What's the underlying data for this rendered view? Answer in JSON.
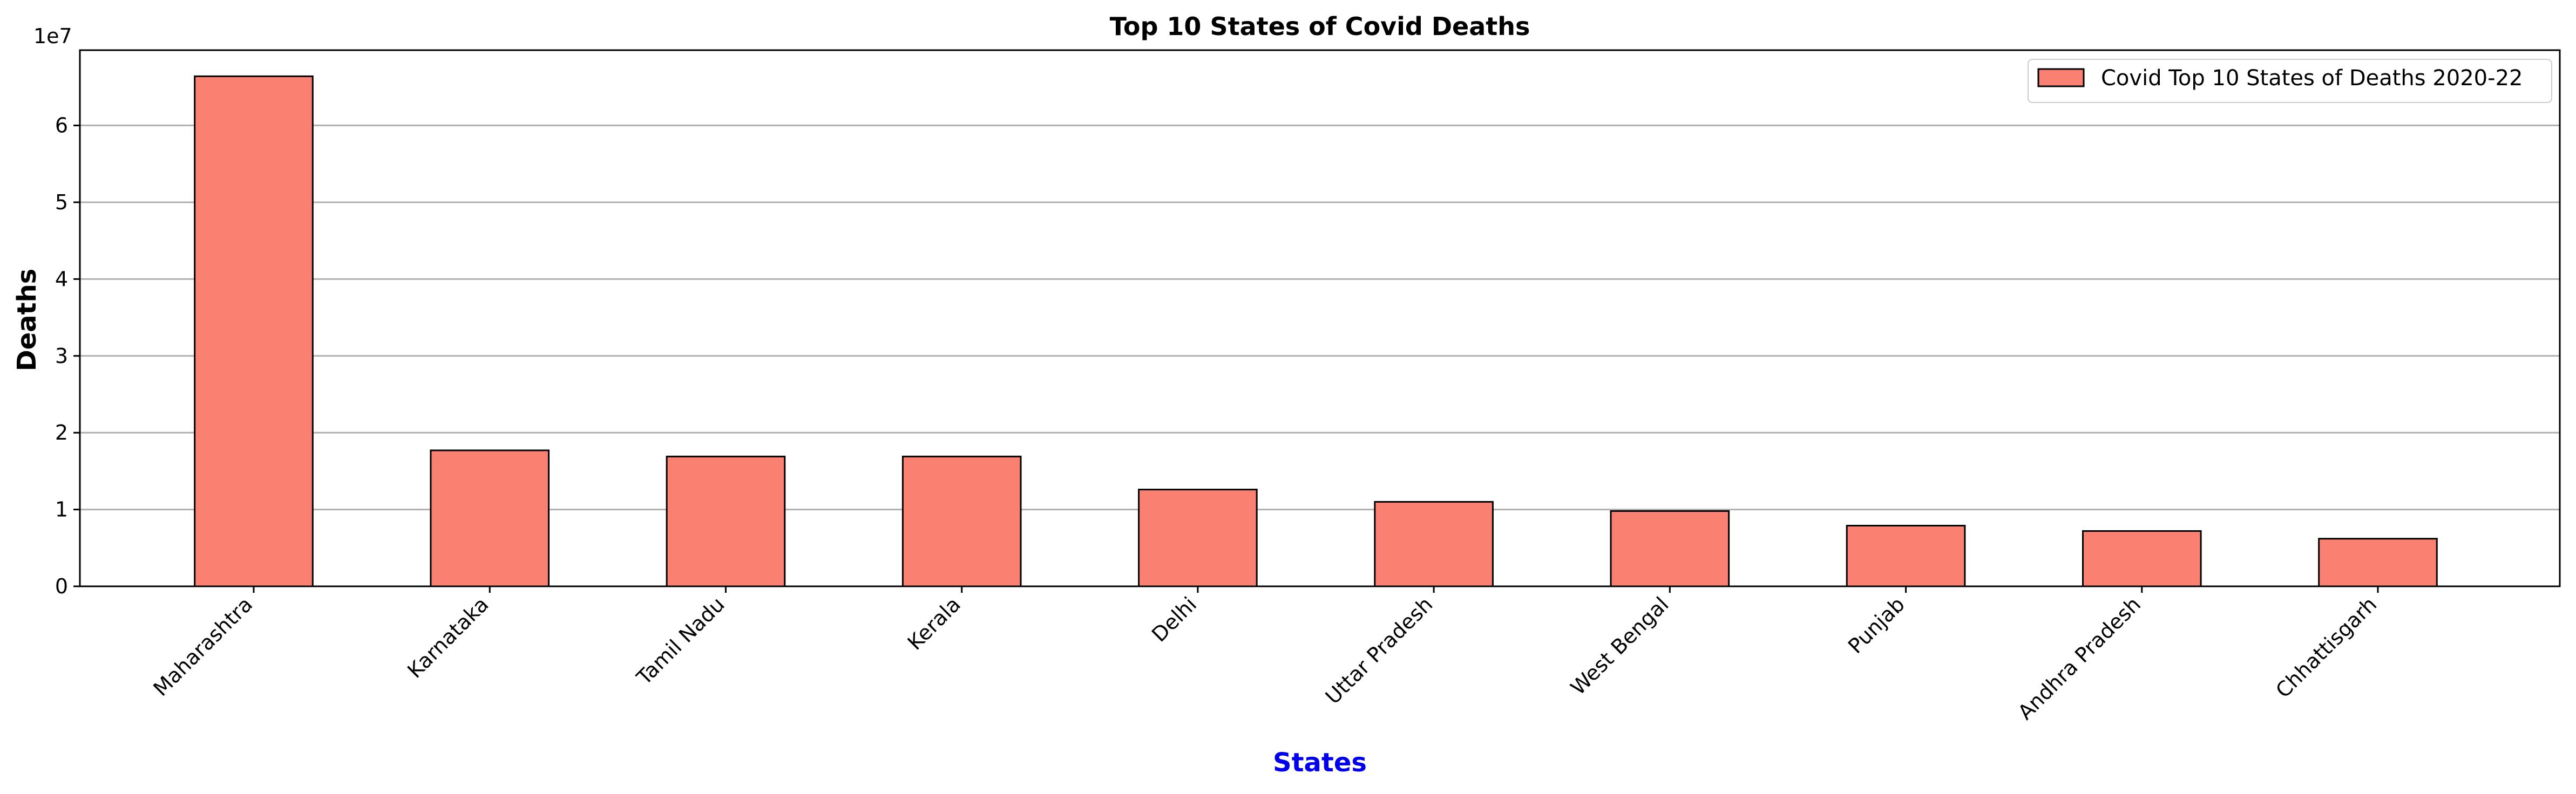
{
  "chart_data": {
    "type": "bar",
    "title": "Top 10 States of Covid Deaths",
    "xlabel": "States",
    "ylabel": "Deaths",
    "y_scale_label": "1e7",
    "categories": [
      "Maharashtra",
      "Karnataka",
      "Tamil Nadu",
      "Kerala",
      "Delhi",
      "Uttar Pradesh",
      "West Bengal",
      "Punjab",
      "Andhra Pradesh",
      "Chhattisgarh"
    ],
    "series": [
      {
        "name": "Covid Top 10 States of Deaths 2020-22",
        "values": [
          66400000,
          17700000,
          16900000,
          16900000,
          12600000,
          11000000,
          9800000,
          7900000,
          7200000,
          6200000
        ]
      }
    ],
    "ylim": [
      0,
      69800000
    ],
    "yticks": [
      0,
      10000000,
      20000000,
      30000000,
      40000000,
      50000000,
      60000000
    ],
    "ytick_labels": [
      "0",
      "1",
      "2",
      "3",
      "4",
      "5",
      "6"
    ],
    "grid": "y",
    "legend_position": "top-right",
    "colors": {
      "bar_fill": "#fa8072",
      "bar_edge": "#000000",
      "xlabel": "#0000ee",
      "grid": "#b0b0b0"
    }
  }
}
